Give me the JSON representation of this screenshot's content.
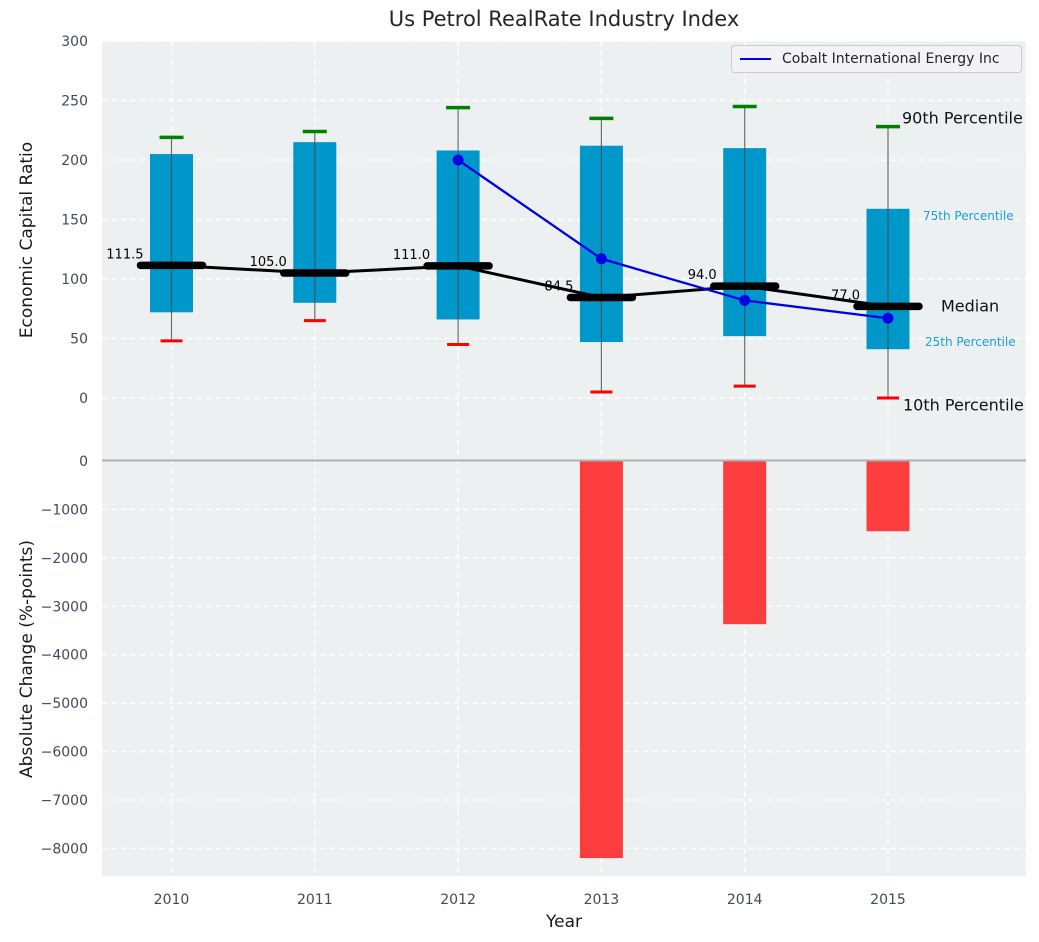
{
  "title": "Us Petrol RealRate Industry Index",
  "legend": {
    "label": "Cobalt International Energy Inc"
  },
  "annotations": {
    "p90": "90th Percentile",
    "p75": "75th Percentile",
    "median": "Median",
    "p25": "25th Percentile",
    "p10": "10th Percentile"
  },
  "colors": {
    "box": "#0098cb",
    "bar": "#fb3d3d",
    "company_line": "#0000e6",
    "cap_high": "#008000",
    "cap_low": "#fd0000",
    "median_line": "#000000",
    "plot_bg": "#edf0f1",
    "grid": "#ffffff",
    "tick_text": "#3d4c5c",
    "whisker": "#4a4a4a",
    "zero_line": "#b0b0b0",
    "percentile_text_cyan": "#18a0d4"
  },
  "chart_data": [
    {
      "type": "boxplot",
      "title": "Us Petrol RealRate Industry Index",
      "ylabel": "Economic Capital Ratio",
      "categories": [
        "2010",
        "2011",
        "2012",
        "2013",
        "2014",
        "2015"
      ],
      "yticks": [
        0,
        50,
        100,
        150,
        200,
        250,
        300
      ],
      "ylim": [
        -33,
        300
      ],
      "grid": true,
      "legend_position": "upper right",
      "percentiles": {
        "p90": [
          219,
          224,
          244,
          235,
          245,
          228
        ],
        "p75": [
          205,
          215,
          208,
          212,
          210,
          159
        ],
        "median": [
          111.5,
          105.0,
          111.0,
          84.5,
          94.0,
          77.0
        ],
        "p25": [
          72,
          80,
          66,
          47,
          52,
          41
        ],
        "p10": [
          48,
          65,
          45,
          5,
          10,
          0
        ]
      },
      "median_labels": [
        "111.5",
        "105.0",
        "111.0",
        "84.5",
        "94.0",
        "77.0"
      ],
      "series": [
        {
          "name": "Cobalt International Energy Inc",
          "x": [
            "2012",
            "2013",
            "2014",
            "2015"
          ],
          "values": [
            200,
            117,
            82,
            67
          ]
        }
      ]
    },
    {
      "type": "bar",
      "ylabel": "Absolute Change (%-points)",
      "xlabel": "Year",
      "categories": [
        "2010",
        "2011",
        "2012",
        "2013",
        "2014",
        "2015"
      ],
      "values": [
        0,
        0,
        0,
        -8200,
        -3370,
        -1450
      ],
      "yticks": [
        0,
        -1000,
        -2000,
        -3000,
        -4000,
        -5000,
        -6000,
        -7000,
        -8000
      ],
      "ylim": [
        -8580,
        500
      ],
      "grid": true
    }
  ]
}
